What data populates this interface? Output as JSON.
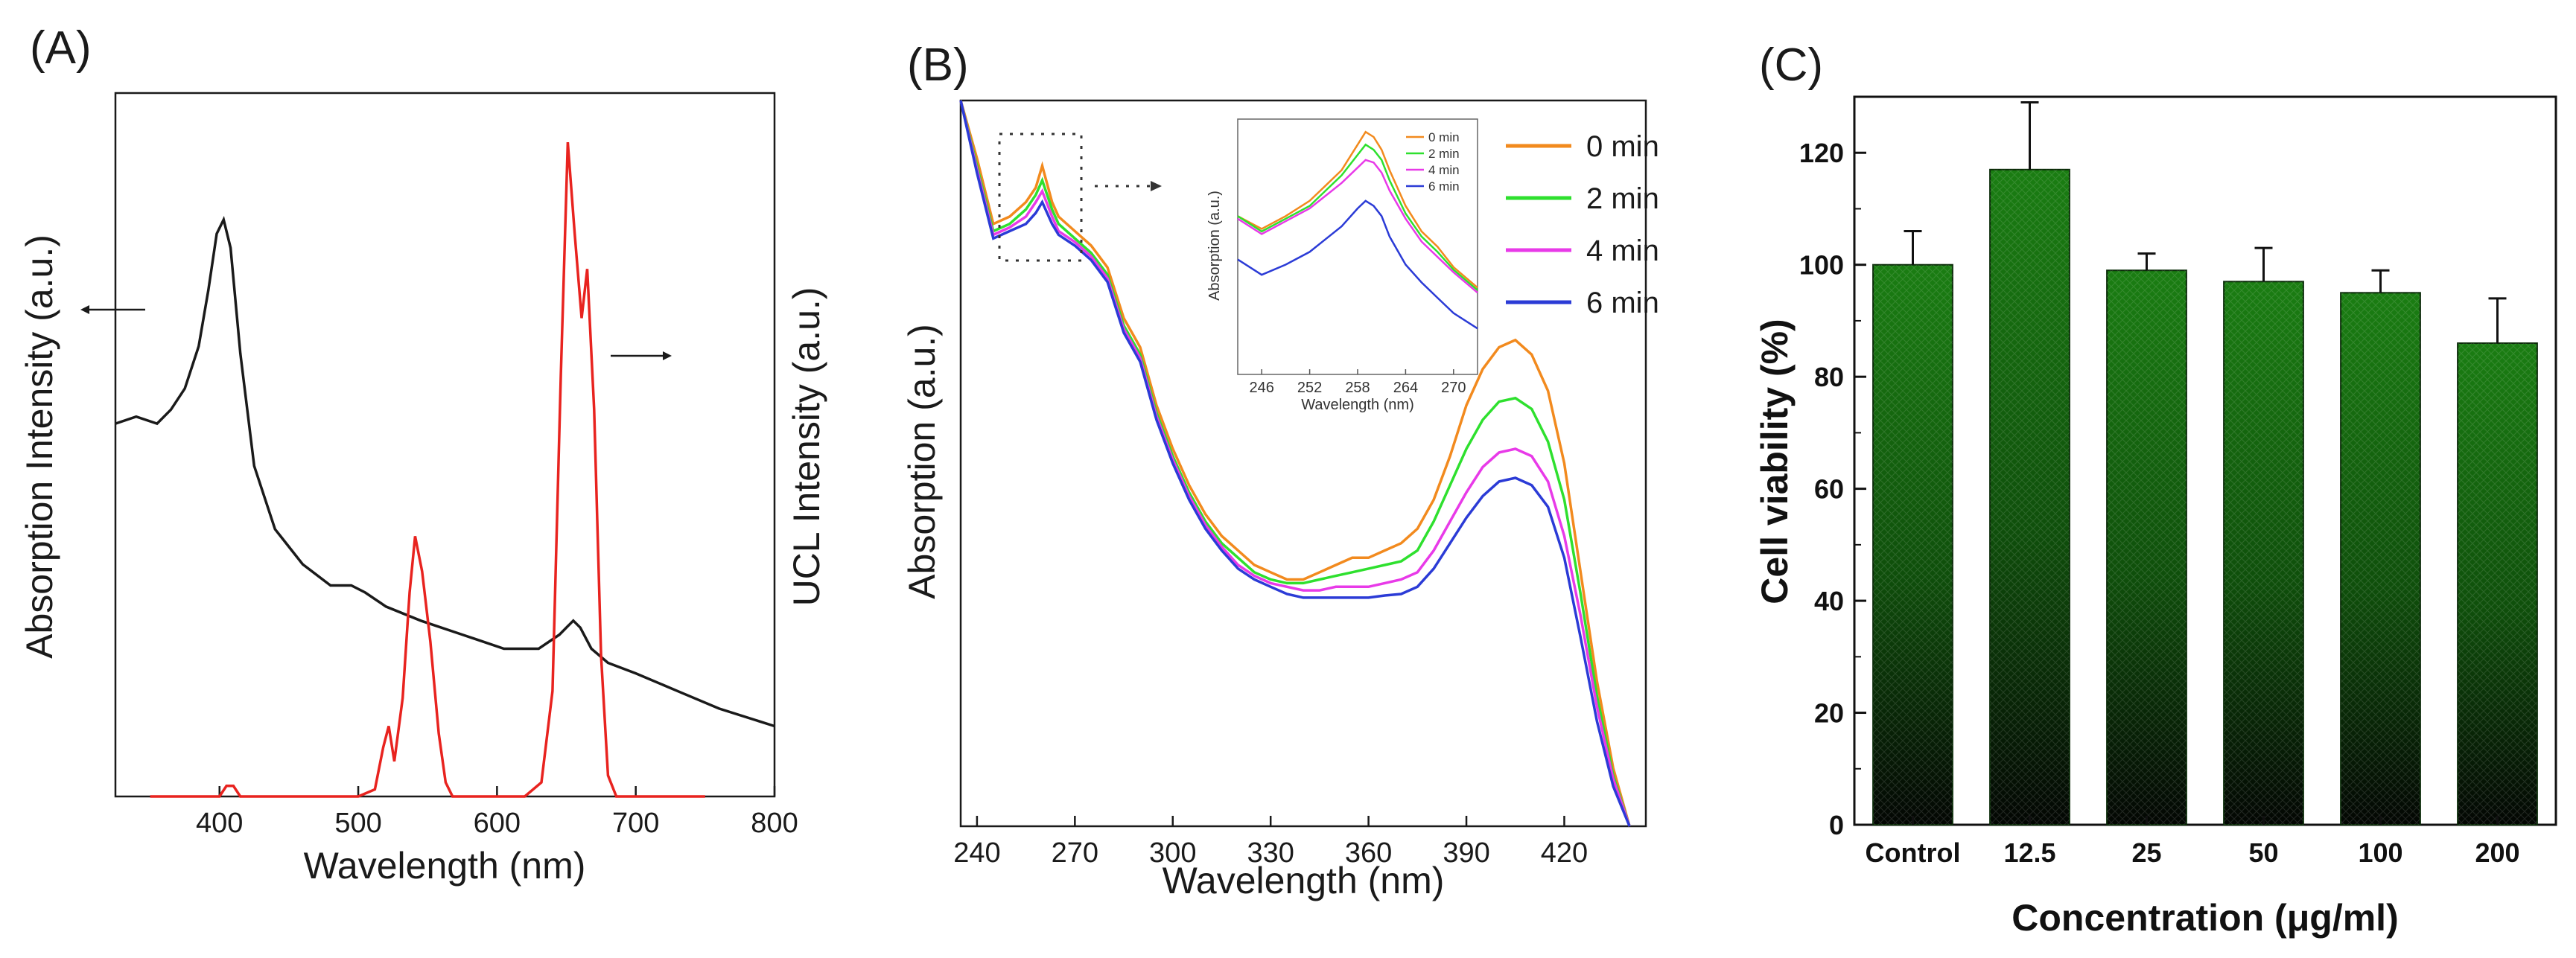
{
  "chart_data": [
    {
      "panel_label": "(A)",
      "type": "line",
      "xlabel": "Wavelength (nm)",
      "ylabel_left": "Absorption Intensity (a.u.)",
      "ylabel_right": "UCL Intensity (a.u.)",
      "xlim": [
        325,
        800
      ],
      "ylim": [
        0,
        100
      ],
      "xticks": [
        400,
        500,
        600,
        700,
        800
      ],
      "colors": {
        "absorption": "#1a1a1a",
        "ucl": "#e8231f"
      },
      "series": [
        {
          "name": "Absorption",
          "x": [
            325,
            340,
            355,
            365,
            375,
            385,
            392,
            398,
            403,
            408,
            415,
            425,
            440,
            460,
            480,
            495,
            505,
            520,
            545,
            575,
            605,
            630,
            645,
            655,
            660,
            668,
            680,
            700,
            730,
            760,
            800
          ],
          "y": [
            53,
            54,
            53,
            55,
            58,
            64,
            72,
            80,
            82,
            78,
            63,
            47,
            38,
            33,
            30,
            30,
            29,
            27,
            25,
            23,
            21,
            21,
            23,
            25,
            24,
            21,
            19,
            17.5,
            15,
            12.5,
            10
          ]
        },
        {
          "name": "UCL",
          "x": [
            350,
            400,
            405,
            410,
            415,
            500,
            512,
            518,
            522,
            526,
            532,
            537,
            541,
            546,
            552,
            558,
            563,
            568,
            580,
            620,
            632,
            640,
            646,
            651,
            656,
            661,
            665,
            670,
            675,
            680,
            686,
            700,
            750
          ],
          "y": [
            0,
            0,
            1.5,
            1.5,
            0,
            0,
            1,
            7,
            10,
            5,
            14,
            29,
            37,
            32,
            22,
            9,
            2,
            0,
            0,
            0,
            2,
            15,
            60,
            93,
            80,
            68,
            75,
            55,
            20,
            3,
            0,
            0,
            0
          ]
        }
      ]
    },
    {
      "panel_label": "(B)",
      "type": "line",
      "xlabel": "Wavelength (nm)",
      "ylabel": "Absorption (a.u.)",
      "xlim": [
        235,
        445
      ],
      "ylim": [
        0,
        100
      ],
      "xticks": [
        240,
        270,
        300,
        330,
        360,
        390,
        420
      ],
      "x": [
        235,
        240,
        245,
        250,
        255,
        258,
        260,
        263,
        265,
        270,
        275,
        280,
        285,
        290,
        295,
        300,
        305,
        310,
        315,
        320,
        325,
        330,
        335,
        340,
        345,
        350,
        355,
        360,
        365,
        370,
        375,
        380,
        385,
        390,
        395,
        400,
        405,
        410,
        415,
        420,
        425,
        430,
        435,
        440
      ],
      "series": [
        {
          "name": "0 min",
          "color": "#f28a1e",
          "values": [
            100,
            92,
            83,
            84,
            86,
            88,
            91,
            86,
            84,
            82,
            80,
            77,
            70,
            66,
            58,
            52,
            47,
            43,
            40,
            38,
            36,
            35,
            34,
            34,
            35,
            36,
            37,
            37,
            38,
            39,
            41,
            45,
            51,
            58,
            63,
            66,
            67,
            65,
            60,
            50,
            35,
            20,
            8,
            0
          ]
        },
        {
          "name": "2 min",
          "color": "#2ee02e",
          "values": [
            100,
            91,
            82,
            83,
            85,
            87,
            89,
            85,
            83,
            81,
            79,
            76,
            69,
            65,
            57,
            51,
            46,
            42,
            39,
            37,
            35,
            34,
            33.5,
            33.5,
            34,
            34.5,
            35,
            35.5,
            36,
            36.5,
            38,
            42,
            47,
            52,
            56,
            58.5,
            59,
            57.5,
            53,
            45,
            32,
            18,
            7,
            0
          ]
        },
        {
          "name": "4 min",
          "color": "#e83ae8",
          "values": [
            100,
            90.5,
            81.5,
            82.5,
            84,
            86,
            87.5,
            84,
            82,
            80.5,
            78.5,
            75.5,
            68.5,
            64.5,
            56.5,
            50.5,
            45.5,
            41.5,
            38.5,
            36,
            34.5,
            33.5,
            33,
            32.5,
            32.5,
            33,
            33,
            33,
            33.5,
            34,
            35,
            38,
            42,
            46,
            49.5,
            51.5,
            52,
            51,
            47.5,
            40,
            29,
            16.5,
            6.5,
            0
          ]
        },
        {
          "name": "6 min",
          "color": "#2b3bd6",
          "values": [
            100,
            90,
            81,
            82,
            83,
            84.5,
            86,
            83,
            81.5,
            80,
            78,
            75,
            68,
            64,
            56,
            50,
            45,
            41,
            38,
            35.5,
            34,
            33,
            32,
            31.5,
            31.5,
            31.5,
            31.5,
            31.5,
            31.8,
            32,
            33,
            35.5,
            39,
            42.5,
            45.5,
            47.5,
            48,
            47,
            44,
            37,
            26,
            14.5,
            5.5,
            0
          ]
        }
      ],
      "inset": {
        "xlabel": "Wavelength (nm)",
        "ylabel": "Absorption (a.u.)",
        "xlim": [
          243,
          273
        ],
        "xticks": [
          246,
          252,
          258,
          264,
          270
        ],
        "x": [
          243,
          246,
          249,
          252,
          254,
          256,
          258,
          259,
          260,
          261,
          262,
          264,
          266,
          268,
          270,
          273
        ],
        "series": [
          {
            "name": "0 min",
            "values": [
              62,
              57,
              62,
              68,
              74,
              80,
              90,
              95,
              93,
              88,
              80,
              66,
              56,
              50,
              42,
              34
            ]
          },
          {
            "name": "2 min",
            "values": [
              62,
              56,
              61,
              66,
              72,
              78,
              86,
              90,
              88,
              84,
              76,
              63,
              54,
              48,
              41,
              33
            ]
          },
          {
            "name": "4 min",
            "values": [
              61,
              55,
              60,
              65,
              70,
              75,
              81,
              84,
              83,
              79,
              72,
              61,
              52,
              46,
              40,
              32
            ]
          },
          {
            "name": "6 min",
            "values": [
              45,
              39,
              43,
              48,
              53,
              58,
              65,
              68,
              66,
              62,
              54,
              43,
              36,
              30,
              24,
              18
            ]
          }
        ]
      }
    },
    {
      "panel_label": "(C)",
      "type": "bar",
      "xlabel": "Concentration (μg/ml)",
      "ylabel": "Cell viability (%)",
      "ylim": [
        0,
        130
      ],
      "yticks": [
        0,
        20,
        40,
        60,
        80,
        100,
        120
      ],
      "categories": [
        "Control",
        "12.5",
        "25",
        "50",
        "100",
        "200"
      ],
      "values": [
        100,
        117,
        99,
        97,
        95,
        86
      ],
      "errors": [
        6,
        12,
        3,
        6,
        4,
        8
      ],
      "bar_color_top": "#1a7d12",
      "bar_color_bottom": "#030603"
    }
  ]
}
